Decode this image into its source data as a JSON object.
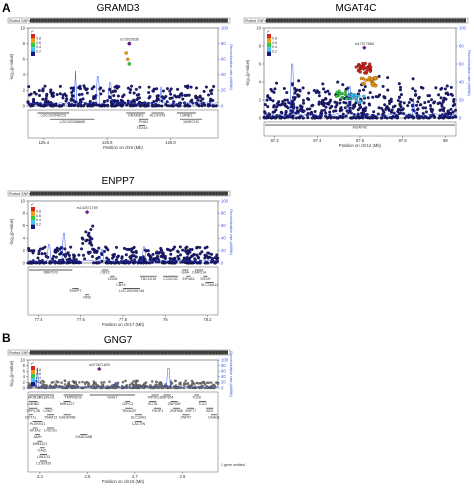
{
  "panels": {
    "a": {
      "letter": "A"
    },
    "b": {
      "letter": "B"
    }
  },
  "common": {
    "plotted_snps": "Plotted SNPs",
    "ylabel": "-log₁₀(p-value)",
    "y2label": "Recombination rate (cM/Mb)",
    "r2": "r²"
  },
  "chart_data": [
    {
      "id": "gramd3",
      "type": "scatter",
      "title": "GRAMD3",
      "xlabel": "Position on chr5 (Mb)",
      "ylabel": "-log₁₀(p-value)",
      "y2label": "Recombination rate (cM/Mb)",
      "xlim": [
        125.35,
        125.95
      ],
      "ylim": [
        0,
        10
      ],
      "y2lim": [
        0,
        100
      ],
      "xticks": [
        125.4,
        125.6,
        125.8
      ],
      "yticks": [
        0,
        2,
        4,
        6,
        8,
        10
      ],
      "y2ticks": [
        0,
        20,
        40,
        60,
        80,
        100
      ],
      "legend_values": [
        "0.8",
        "0.6",
        "0.4",
        "0.2"
      ],
      "lead_snp": {
        "label": "rs73029536",
        "x": 125.67,
        "y": 8.0
      },
      "snp_highlights": [
        {
          "x": 125.67,
          "y": 8.0,
          "r2": 1
        },
        {
          "x": 125.66,
          "y": 6.8,
          "r2": 0.7
        },
        {
          "x": 125.665,
          "y": 6.0,
          "r2": 0.6
        },
        {
          "x": 125.67,
          "y": 5.4,
          "r2": 0.5
        }
      ],
      "genes": [
        {
          "name": "LOC102546229",
          "x1": 125.38,
          "x2": 125.48,
          "row": 0
        },
        {
          "name": "LOC100288685",
          "x1": 125.42,
          "x2": 125.56,
          "row": 1
        },
        {
          "name": "GRAMD3",
          "x1": 125.66,
          "x2": 125.72,
          "row": 0
        },
        {
          "name": "ALDH7A1",
          "x1": 125.74,
          "x2": 125.78,
          "row": 0
        },
        {
          "name": "PHAX",
          "x1": 125.7,
          "x2": 125.73,
          "row": 1
        },
        {
          "name": "TEX43",
          "x1": 125.7,
          "x2": 125.72,
          "row": 2
        },
        {
          "name": "LMNB1",
          "x1": 125.82,
          "x2": 125.88,
          "row": 0
        },
        {
          "name": "MARCH3",
          "x1": 125.83,
          "x2": 125.9,
          "row": 1
        }
      ],
      "recomb_peaks": [
        [
          125.5,
          45
        ],
        [
          125.57,
          38
        ],
        [
          125.61,
          30
        ],
        [
          125.77,
          25
        ]
      ]
    },
    {
      "id": "mgat4c",
      "type": "scatter",
      "title": "MGAT4C",
      "xlabel": "Position on chr12 (Mb)",
      "ylabel": "-log₁₀(p-value)",
      "y2label": "Recombination rate (cM/Mb)",
      "xlim": [
        87.15,
        88.05
      ],
      "ylim": [
        0,
        10
      ],
      "y2lim": [
        0,
        100
      ],
      "xticks": [
        87.2,
        87.4,
        87.6,
        87.8,
        88
      ],
      "yticks": [
        0,
        2,
        4,
        6,
        8,
        10
      ],
      "y2ticks": [
        0,
        20,
        40,
        60,
        80,
        100
      ],
      "legend_values": [
        "0.8",
        "0.6",
        "0.4",
        "0.2"
      ],
      "lead_snp": {
        "label": "rs17577868",
        "x": 87.62,
        "y": 7.8
      },
      "snp_highlights": [],
      "genes": [
        {
          "name": "MGAT4C",
          "x1": 87.15,
          "x2": 88.05,
          "row": 0
        }
      ],
      "recomb_peaks": [
        [
          87.28,
          60
        ],
        [
          87.55,
          35
        ],
        [
          87.85,
          22
        ]
      ]
    },
    {
      "id": "enpp7",
      "type": "scatter",
      "title": "ENPP7",
      "xlabel": "Position on chr17 (Mb)",
      "ylabel": "-log₁₀(p-value)",
      "y2label": "Recombination rate (cM/Mb)",
      "xlim": [
        77.35,
        78.25
      ],
      "ylim": [
        0,
        10
      ],
      "y2lim": [
        0,
        100
      ],
      "xticks": [
        77.4,
        77.6,
        77.8,
        78,
        78.2
      ],
      "yticks": [
        0,
        2,
        4,
        6,
        8,
        10
      ],
      "y2ticks": [
        0,
        20,
        40,
        60,
        80,
        100
      ],
      "legend_values": [
        "0.8",
        "0.6",
        "0.4",
        "0.2"
      ],
      "lead_snp": {
        "label": "rs142671759",
        "x": 77.63,
        "y": 8.2
      },
      "snp_highlights": [],
      "genes": [
        {
          "name": "RBFOX3",
          "x1": 77.35,
          "x2": 77.56,
          "row": 0
        },
        {
          "name": "ENPP7",
          "x1": 77.56,
          "x2": 77.59,
          "row": 3
        },
        {
          "name": "NPB",
          "x1": 77.62,
          "x2": 77.64,
          "row": 4
        },
        {
          "name": "CBX2",
          "x1": 77.7,
          "x2": 77.73,
          "row": 0
        },
        {
          "name": "CBX8",
          "x1": 77.74,
          "x2": 77.76,
          "row": 1
        },
        {
          "name": "CBX4",
          "x1": 77.78,
          "x2": 77.8,
          "row": 2
        },
        {
          "name": "LOC100296746",
          "x1": 77.8,
          "x2": 77.88,
          "row": 3
        },
        {
          "name": "TBC1D16",
          "x1": 77.88,
          "x2": 77.96,
          "row": 1
        },
        {
          "name": "CCDC40",
          "x1": 77.99,
          "x2": 78.06,
          "row": 1
        },
        {
          "name": "GAA",
          "x1": 78.08,
          "x2": 78.11,
          "row": 0
        },
        {
          "name": "EIF4A3",
          "x1": 78.1,
          "x2": 78.12,
          "row": 1
        },
        {
          "name": "CARD14",
          "x1": 78.14,
          "x2": 78.18,
          "row": 0
        },
        {
          "name": "SGSH",
          "x1": 78.18,
          "x2": 78.2,
          "row": 1
        },
        {
          "name": "SLC26A11",
          "x1": 78.19,
          "x2": 78.23,
          "row": 2
        }
      ],
      "recomb_peaks": [
        [
          77.45,
          30
        ],
        [
          77.52,
          48
        ],
        [
          77.7,
          22
        ],
        [
          77.9,
          26
        ]
      ]
    },
    {
      "id": "gng7",
      "type": "scatter",
      "title": "GNG7",
      "xlabel": "Position on chr19 (Mb)",
      "ylabel": "-log₁₀(p-value)",
      "y2label": "Recombination rate (cM/Mb)",
      "xlim": [
        2.25,
        3.05
      ],
      "ylim": [
        0,
        10
      ],
      "y2lim": [
        0,
        100
      ],
      "xticks": [
        2.3,
        2.5,
        2.7,
        2.9
      ],
      "yticks": [
        0,
        2,
        4,
        6,
        8,
        10
      ],
      "y2ticks": [
        0,
        20,
        40,
        60,
        80,
        100
      ],
      "legend_values": [
        "0.8",
        "0.6",
        "0.4",
        "0.2"
      ],
      "lead_snp": {
        "label": "rs373871829",
        "x": 2.55,
        "y": 6.8
      },
      "snp_highlights": [],
      "note": "1 gene omitted",
      "genes": [
        {
          "name": "MOB3A",
          "x1": 2.25,
          "x2": 2.3,
          "row": 0
        },
        {
          "name": "LMNB2",
          "x1": 2.25,
          "x2": 2.29,
          "row": 1
        },
        {
          "name": "SPPL2B",
          "x1": 2.25,
          "x2": 2.29,
          "row": 2
        },
        {
          "name": "DOT1L",
          "x1": 2.25,
          "x2": 2.27,
          "row": 3
        },
        {
          "name": "PLEKHJ1",
          "x1": 2.27,
          "x2": 2.31,
          "row": 4
        },
        {
          "name": "SF3A2",
          "x1": 2.27,
          "x2": 2.29,
          "row": 5
        },
        {
          "name": "AMH",
          "x1": 2.28,
          "x2": 2.3,
          "row": 6
        },
        {
          "name": "MIR4321",
          "x1": 2.29,
          "x2": 2.31,
          "row": 7
        },
        {
          "name": "OAZ1",
          "x1": 2.3,
          "x2": 2.32,
          "row": 8
        },
        {
          "name": "LINGO3",
          "x1": 2.3,
          "x2": 2.33,
          "row": 9
        },
        {
          "name": "C19orf35",
          "x1": 2.3,
          "x2": 2.33,
          "row": 10
        },
        {
          "name": "PLEKHJ1",
          "x1": 2.3,
          "x2": 2.36,
          "row": 0
        },
        {
          "name": "GADD45B",
          "x1": 2.4,
          "x2": 2.43,
          "row": 3
        },
        {
          "name": "LSM7",
          "x1": 2.32,
          "x2": 2.35,
          "row": 2
        },
        {
          "name": "TIMM13",
          "x1": 2.33,
          "x2": 2.36,
          "row": 3
        },
        {
          "name": "LNCGG",
          "x1": 2.33,
          "x2": 2.36,
          "row": 5
        },
        {
          "name": "TMPRSS9",
          "x1": 2.4,
          "x2": 2.48,
          "row": 0
        },
        {
          "name": "MIR1227",
          "x1": 2.4,
          "x2": 2.43,
          "row": 1
        },
        {
          "name": "GADD45B",
          "x1": 2.47,
          "x2": 2.5,
          "row": 6
        },
        {
          "name": "GNG7",
          "x1": 2.51,
          "x2": 2.7,
          "row": 0
        },
        {
          "name": "GIPC3",
          "x1": 2.66,
          "x2": 2.68,
          "row": 1
        },
        {
          "name": "TBXA2R",
          "x1": 2.66,
          "x2": 2.69,
          "row": 2
        },
        {
          "name": "SLC39A3",
          "x1": 2.7,
          "x2": 2.73,
          "row": 3
        },
        {
          "name": "CACTIN",
          "x1": 2.7,
          "x2": 2.73,
          "row": 4
        },
        {
          "name": "PIP5K1C",
          "x1": 2.77,
          "x2": 2.8,
          "row": 0
        },
        {
          "name": "SGTA",
          "x1": 2.76,
          "x2": 2.79,
          "row": 1
        },
        {
          "name": "THOP1",
          "x1": 2.78,
          "x2": 2.81,
          "row": 2
        },
        {
          "name": "ZNF554",
          "x1": 2.82,
          "x2": 2.85,
          "row": 0
        },
        {
          "name": "ZNF555",
          "x1": 2.85,
          "x2": 2.88,
          "row": 1
        },
        {
          "name": "ZNF556",
          "x1": 2.86,
          "x2": 2.89,
          "row": 2
        },
        {
          "name": "ZNF57",
          "x1": 2.9,
          "x2": 2.93,
          "row": 3
        },
        {
          "name": "TLE6",
          "x1": 2.95,
          "x2": 2.97,
          "row": 0
        },
        {
          "name": "TLE2",
          "x1": 2.97,
          "x2": 3.0,
          "row": 1
        },
        {
          "name": "AES",
          "x1": 3.0,
          "x2": 3.03,
          "row": 2
        },
        {
          "name": "GNA11",
          "x1": 3.02,
          "x2": 3.05,
          "row": 3
        },
        {
          "name": "ZNF77",
          "x1": 2.92,
          "x2": 2.95,
          "row": 2
        }
      ],
      "recomb_peaks": [
        [
          2.29,
          72
        ],
        [
          2.62,
          18
        ],
        [
          2.84,
          70
        ]
      ]
    }
  ],
  "colors": {
    "low_r2": "#1a1a7a",
    "recomb": "#3355ee",
    "lead": "#6a1b9a",
    "r2_08": "#d6261f",
    "r2_06": "#f39c12",
    "r2_04": "#2ecc40",
    "r2_02": "#40c4ff",
    "r2_00": "#1a1a7a",
    "gray_snps": "#7f7f7f"
  }
}
